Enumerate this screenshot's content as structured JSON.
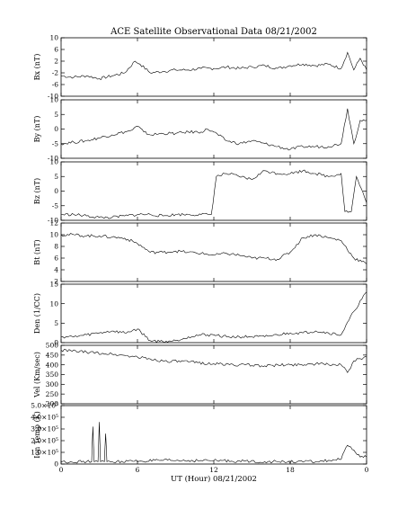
{
  "figure": {
    "title": "ACE Satellite Observational Data   08/21/2002",
    "xlabel": "UT (Hour)   08/21/2002"
  },
  "chart_data": [
    {
      "type": "line",
      "title": "ACE Satellite Observational Data   08/21/2002",
      "ylabel": "Bx (nT)",
      "xlim": [
        0,
        24
      ],
      "ylim": [
        -10,
        10
      ],
      "yticks": [
        "10",
        "6",
        "2",
        "-2",
        "-6",
        "-10"
      ],
      "xticks": [
        "0",
        "6",
        "12",
        "18",
        "0"
      ],
      "series": [
        {
          "x": [
            0,
            1,
            2,
            3,
            4,
            5,
            5.8,
            6.2,
            7,
            8,
            9,
            10,
            11,
            12,
            13,
            14,
            15,
            16,
            17,
            18,
            19,
            20,
            21,
            22,
            22.5,
            23,
            23.5,
            24
          ],
          "y": [
            -3,
            -3.5,
            -3,
            -4,
            -3,
            -2,
            2,
            1,
            -2,
            -1.5,
            -1,
            -1,
            -0.5,
            -0.5,
            0,
            -0.5,
            0,
            0.5,
            -0.5,
            0.5,
            1,
            0.5,
            1,
            -0.5,
            5,
            -1,
            3,
            -1
          ]
        }
      ]
    },
    {
      "type": "line",
      "ylabel": "By (nT)",
      "xlim": [
        0,
        24
      ],
      "ylim": [
        -10,
        10
      ],
      "yticks": [
        "10",
        "5",
        "0",
        "-5",
        "-10"
      ],
      "xticks": [
        "0",
        "6",
        "12",
        "18",
        "0"
      ],
      "series": [
        {
          "x": [
            0,
            1,
            2,
            3,
            4,
            5,
            5.5,
            6,
            6.5,
            7,
            8,
            9,
            10,
            11,
            11.5,
            12,
            13,
            14,
            15,
            16,
            17,
            18,
            19,
            20,
            21,
            22,
            22.5,
            23,
            23.5,
            24
          ],
          "y": [
            -5,
            -4.5,
            -4,
            -3,
            -2,
            -1,
            -0.5,
            1,
            -1,
            -2,
            -1.5,
            -1.5,
            -1,
            -1,
            0,
            -1,
            -4,
            -5,
            -4,
            -5,
            -6,
            -7,
            -6,
            -6,
            -6,
            -5,
            7,
            -5,
            3,
            3
          ]
        }
      ]
    },
    {
      "type": "line",
      "ylabel": "Bz (nT)",
      "xlim": [
        0,
        24
      ],
      "ylim": [
        -10,
        10
      ],
      "yticks": [
        "10",
        "5",
        "0",
        "-5",
        "-10"
      ],
      "xticks": [
        "0",
        "6",
        "12",
        "18",
        "0"
      ],
      "series": [
        {
          "x": [
            0,
            1,
            2,
            3,
            4,
            5,
            6,
            7,
            8,
            9,
            10,
            11,
            11.8,
            12.2,
            13,
            14,
            15,
            16,
            17,
            18,
            19,
            20,
            21,
            22,
            22.3,
            22.8,
            23.2,
            24
          ],
          "y": [
            -8,
            -8,
            -8.5,
            -9,
            -9,
            -8.5,
            -8,
            -8,
            -8.5,
            -8,
            -8,
            -8,
            -8,
            5,
            6,
            5,
            4,
            7,
            6,
            6,
            7,
            6,
            5,
            6,
            -7,
            -7,
            5,
            -4
          ]
        }
      ]
    },
    {
      "type": "line",
      "ylabel": "Bt (nT)",
      "xlim": [
        0,
        24
      ],
      "ylim": [
        2,
        12
      ],
      "yticks": [
        "12",
        "10",
        "8",
        "6",
        "4",
        "2"
      ],
      "xticks": [
        "0",
        "6",
        "12",
        "18",
        "0"
      ],
      "series": [
        {
          "x": [
            0,
            1,
            2,
            3,
            4,
            5,
            6,
            7,
            8,
            9,
            10,
            11,
            12,
            13,
            14,
            15,
            16,
            17,
            18,
            19,
            20,
            21,
            22,
            23,
            24
          ],
          "y": [
            10,
            10,
            9.8,
            9.8,
            9.6,
            9.4,
            8.5,
            7,
            7,
            7.2,
            7,
            6.8,
            6.5,
            6.8,
            6.5,
            6,
            6,
            5.8,
            7,
            9.5,
            10,
            9.5,
            9,
            6,
            5
          ]
        }
      ]
    },
    {
      "type": "line",
      "ylabel": "Den (1/CC)",
      "xlim": [
        0,
        24
      ],
      "ylim": [
        0,
        15
      ],
      "yticks": [
        "15",
        "10",
        "5",
        "0"
      ],
      "xticks": [
        "0",
        "6",
        "12",
        "18",
        "0"
      ],
      "series": [
        {
          "x": [
            0,
            1,
            2,
            3,
            4,
            5,
            6,
            7,
            8,
            9,
            10,
            11,
            12,
            13,
            14,
            15,
            16,
            17,
            18,
            19,
            20,
            21,
            22,
            23,
            24
          ],
          "y": [
            1.5,
            1.5,
            2,
            2.5,
            3,
            2.5,
            3.5,
            0.5,
            0.3,
            0.5,
            1.5,
            2,
            2,
            1.5,
            1.5,
            1.5,
            1.5,
            2,
            2.5,
            2.5,
            3,
            2.5,
            2,
            8,
            13
          ]
        }
      ]
    },
    {
      "type": "line",
      "ylabel": "Vel (Km/sec)",
      "xlim": [
        0,
        24
      ],
      "ylim": [
        200,
        500
      ],
      "yticks": [
        "500",
        "450",
        "400",
        "350",
        "300",
        "250",
        "200"
      ],
      "xticks": [
        "0",
        "6",
        "12",
        "18",
        "0"
      ],
      "series": [
        {
          "x": [
            0,
            2,
            4,
            6,
            8,
            10,
            12,
            14,
            16,
            18,
            20,
            22,
            22.5,
            23,
            24
          ],
          "y": [
            475,
            465,
            455,
            440,
            420,
            415,
            405,
            400,
            395,
            400,
            405,
            400,
            360,
            420,
            440
          ]
        }
      ]
    },
    {
      "type": "line",
      "ylabel": "Ion Temp (K)",
      "xlim": [
        0,
        24
      ],
      "ylim": [
        0,
        500000.0
      ],
      "yticks": [
        "5.0×10⁵",
        "4.0×10⁵",
        "3.0×10⁵",
        "2.0×10⁵",
        "1.0×10⁵",
        "0"
      ],
      "xticks": [
        "0",
        "6",
        "12",
        "18",
        "0"
      ],
      "series": [
        {
          "x": [
            0,
            2,
            2.4,
            2.5,
            2.6,
            2.9,
            3.0,
            3.1,
            3.4,
            3.5,
            3.6,
            4,
            8,
            12,
            16,
            20,
            22,
            22.5,
            23,
            23.5,
            24
          ],
          "y": [
            20000.0,
            20000.0,
            20000.0,
            320000.0,
            20000.0,
            20000.0,
            360000.0,
            20000.0,
            20000.0,
            260000.0,
            20000.0,
            20000.0,
            30000.0,
            30000.0,
            20000.0,
            20000.0,
            40000.0,
            160000.0,
            120000.0,
            60000.0,
            60000.0
          ]
        }
      ]
    }
  ]
}
